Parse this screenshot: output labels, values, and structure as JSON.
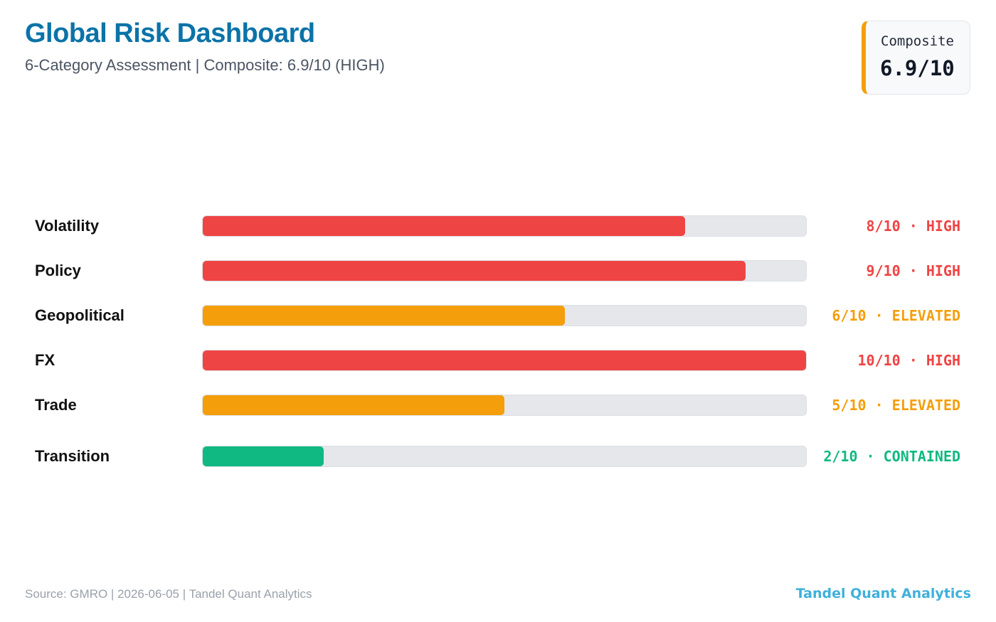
{
  "header": {
    "title": "Global Risk Dashboard",
    "subtitle": "6-Category Assessment | Composite: 6.9/10 (HIGH)"
  },
  "composite": {
    "label": "Composite",
    "value": "6.9/10",
    "accent_color": "#f59e0b"
  },
  "colors": {
    "HIGH": "#ef4444",
    "ELEVATED": "#f59e0b",
    "CONTAINED": "#10b981",
    "track": "#e5e7eb",
    "title": "#0b73a8",
    "brand": "#3fb0dc"
  },
  "chart_data": {
    "type": "bar",
    "orientation": "horizontal",
    "xlim": [
      0,
      10
    ],
    "categories": [
      "Volatility",
      "Policy",
      "Geopolitical",
      "FX",
      "Trade",
      "Transition"
    ],
    "values": [
      8,
      9,
      6,
      10,
      5,
      2
    ],
    "value_labels": [
      "8/10 · HIGH",
      "9/10 · HIGH",
      "6/10 · ELEVATED",
      "10/10 · HIGH",
      "5/10 · ELEVATED",
      "2/10 · CONTAINED"
    ],
    "levels": [
      "HIGH",
      "HIGH",
      "ELEVATED",
      "HIGH",
      "ELEVATED",
      "CONTAINED"
    ],
    "grid": false
  },
  "footer": {
    "source": "Source: GMRO | 2026-06-05 | Tandel Quant Analytics",
    "brand": "Tandel Quant Analytics"
  }
}
